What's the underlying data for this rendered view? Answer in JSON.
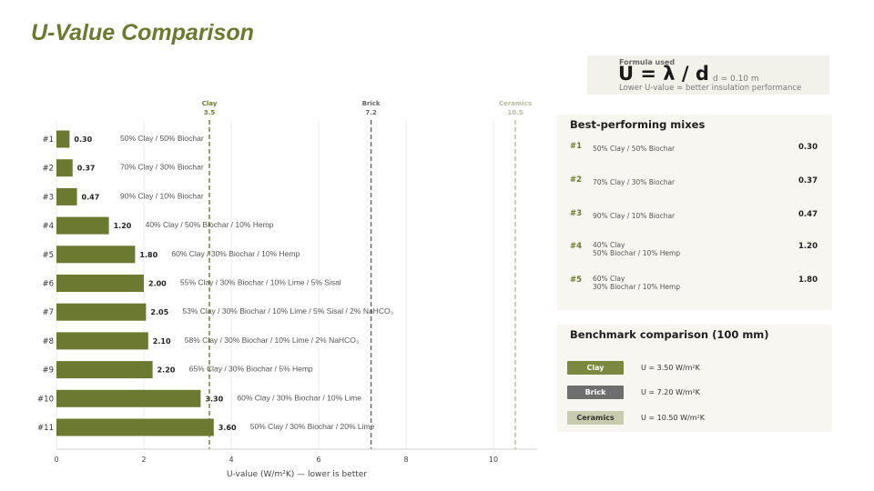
{
  "page": {
    "title": "U-Value Comparison"
  },
  "formula": {
    "label": "Formula used",
    "main": "U = λ / d",
    "d": "d = 0.10 m",
    "note": "Lower U-value = better insulation performance"
  },
  "chart_data": {
    "type": "bar",
    "orientation": "horizontal",
    "categories": [
      "#1",
      "#2",
      "#3",
      "#4",
      "#5",
      "#6",
      "#7",
      "#8",
      "#9",
      "#10",
      "#11"
    ],
    "values": [
      0.3,
      0.37,
      0.47,
      1.2,
      1.8,
      2.0,
      2.05,
      2.1,
      2.2,
      3.3,
      3.6
    ],
    "value_labels": [
      "0.30",
      "0.37",
      "0.47",
      "1.20",
      "1.80",
      "2.00",
      "2.05",
      "2.10",
      "2.20",
      "3.30",
      "3.60"
    ],
    "mix_labels": [
      "50% Clay / 50% Biochar",
      "70% Clay / 30% Biochar",
      "90% Clay / 10% Biochar",
      "40% Clay / 50% Biochar / 10% Hemp",
      "60% Clay / 30% Biochar / 10% Hemp",
      "55% Clay / 30% Biochar / 10% Lime / 5% Sisal",
      "53% Clay / 30% Biochar / 10% Lime / 5% Sisal / 2% NaHCO₃",
      "58% Clay / 30% Biochar / 10% Lime / 2% NaHCO₃",
      "65% Clay / 30% Biochar / 5% Hemp",
      "60% Clay / 30% Biochar / 10% Lime",
      "50% Clay / 30% Biochar / 20% Lime"
    ],
    "xlabel": "U-value (W/m²K) — lower is better",
    "xlim": [
      0,
      11
    ],
    "xticks": [
      0,
      2,
      4,
      6,
      8,
      10
    ],
    "grid": true,
    "bar_color": "#6b7a30",
    "references": [
      {
        "name": "Clay",
        "value": 3.5,
        "label": "3.5",
        "color": "#6b7a30"
      },
      {
        "name": "Brick",
        "value": 7.2,
        "label": "7.2",
        "color": "#666666"
      },
      {
        "name": "Ceramics",
        "value": 10.5,
        "label": "10.5",
        "color": "#b8bb9a"
      }
    ]
  },
  "best": {
    "title": "Best-performing mixes",
    "items": [
      {
        "rank": "#1",
        "mix": "50% Clay / 50% Biochar",
        "u": "0.30"
      },
      {
        "rank": "#2",
        "mix": "70% Clay / 30% Biochar",
        "u": "0.37"
      },
      {
        "rank": "#3",
        "mix": "90% Clay / 10% Biochar",
        "u": "0.47"
      },
      {
        "rank": "#4",
        "mix": "40% Clay\n50% Biochar / 10% Hemp",
        "u": "1.20"
      },
      {
        "rank": "#5",
        "mix": "60% Clay\n30% Biochar / 10% Hemp",
        "u": "1.80"
      }
    ]
  },
  "bench": {
    "title": "Benchmark comparison (100 mm)",
    "items": [
      {
        "name": "Clay",
        "value": "U = 3.50 W/m²K",
        "bg": "#7a8840",
        "fg": "#ffffff"
      },
      {
        "name": "Brick",
        "value": "U = 7.20 W/m²K",
        "bg": "#6e6e6e",
        "fg": "#ffffff"
      },
      {
        "name": "Ceramics",
        "value": "U = 10.50 W/m²K",
        "bg": "#c8cbad",
        "fg": "#333333"
      }
    ]
  }
}
